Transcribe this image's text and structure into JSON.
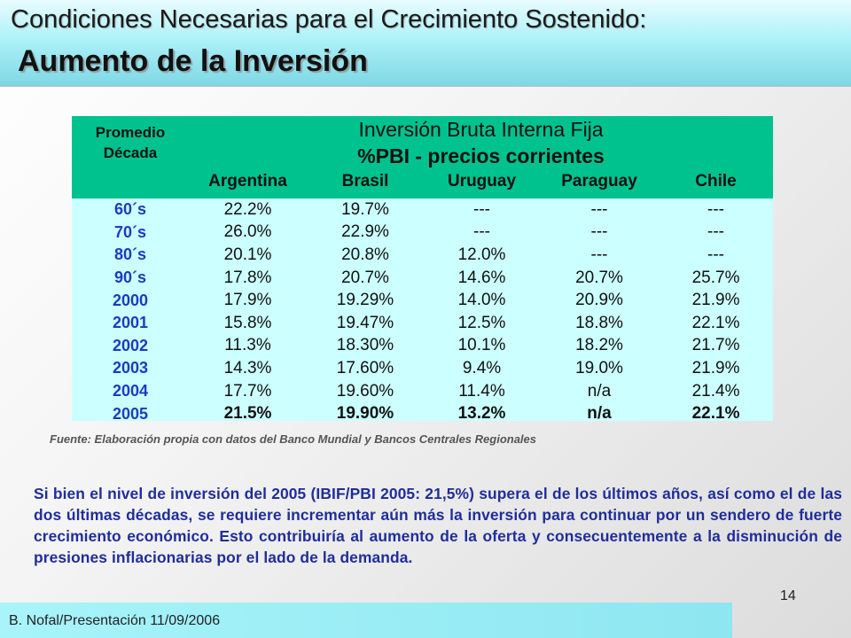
{
  "header": {
    "title": "Condiciones Necesarias para el Crecimiento Sostenido:",
    "subtitle": "Aumento de la Inversión"
  },
  "table": {
    "row_header_line1": "Promedio",
    "row_header_line2": "Década",
    "title_line1": "Inversión Bruta Interna Fija",
    "title_line2": "%PBI - precios corrientes",
    "columns": [
      "Argentina",
      "Brasil",
      "Uruguay",
      "Paraguay",
      "Chile"
    ],
    "rows": [
      {
        "label": "60´s",
        "values": [
          "22.2%",
          "19.7%",
          "---",
          "---",
          "---"
        ]
      },
      {
        "label": "70´s",
        "values": [
          "26.0%",
          "22.9%",
          "---",
          "---",
          "---"
        ]
      },
      {
        "label": "80´s",
        "values": [
          "20.1%",
          "20.8%",
          "12.0%",
          "---",
          "---"
        ]
      },
      {
        "label": "90´s",
        "values": [
          "17.8%",
          "20.7%",
          "14.6%",
          "20.7%",
          "25.7%"
        ]
      },
      {
        "label": "2000",
        "values": [
          "17.9%",
          "19.29%",
          "14.0%",
          "20.9%",
          "21.9%"
        ]
      },
      {
        "label": "2001",
        "values": [
          "15.8%",
          "19.47%",
          "12.5%",
          "18.8%",
          "22.1%"
        ]
      },
      {
        "label": "2002",
        "values": [
          "11.3%",
          "18.30%",
          "10.1%",
          "18.2%",
          "21.7%"
        ]
      },
      {
        "label": "2003",
        "values": [
          "14.3%",
          "17.60%",
          "9.4%",
          "19.0%",
          "21.9%"
        ]
      },
      {
        "label": "2004",
        "values": [
          "17.7%",
          "19.60%",
          "11.4%",
          "n/a",
          "21.4%"
        ]
      },
      {
        "label": "2005",
        "values": [
          "21.5%",
          "19.90%",
          "13.2%",
          "n/a",
          "22.1%"
        ]
      }
    ]
  },
  "source": "Fuente: Elaboración propia con datos del Banco Mundial y Bancos Centrales Regionales",
  "body_text": "Si bien el nivel de inversión del 2005 (IBIF/PBI 2005: 21,5%) supera el de los últimos años, así como el de las dos últimas décadas, se requiere incrementar aún más la inversión para continuar por un sendero de fuerte crecimiento económico. Esto contribuiría al aumento de la oferta y consecuentemente a la disminución de presiones inflacionarias por el lado de la demanda.",
  "page_number": "14",
  "footer": "B. Nofal/Presentación 11/09/2006",
  "colors": {
    "table_header": "#00c28f",
    "table_body": "#ccffff",
    "row_label": "#1a3cbf",
    "body_text": "#1f2e9a",
    "header_band": "#aef2f8"
  }
}
